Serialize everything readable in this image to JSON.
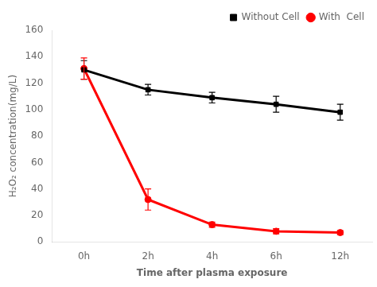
{
  "chart_data": {
    "type": "line",
    "xlabel": "Time after plasma exposure",
    "ylabel": "H₂O₂ concentration(mg/L)",
    "categories": [
      "0h",
      "2h",
      "4h",
      "6h",
      "12h"
    ],
    "series": [
      {
        "name": "Without Cell",
        "color": "#000000",
        "marker": "square",
        "values": [
          130,
          115,
          109,
          104,
          98
        ],
        "yerr": [
          7,
          4,
          4,
          6,
          6
        ]
      },
      {
        "name": "With  Cell",
        "color": "#ff0000",
        "marker": "circle",
        "values": [
          131,
          32,
          13,
          8,
          7
        ],
        "yerr": [
          8,
          8,
          2,
          2,
          1.5
        ]
      }
    ],
    "ylim": [
      0,
      160
    ],
    "yticks": [
      0,
      20,
      40,
      60,
      80,
      100,
      120,
      140,
      160
    ],
    "grid": false,
    "legend": "upper right"
  }
}
